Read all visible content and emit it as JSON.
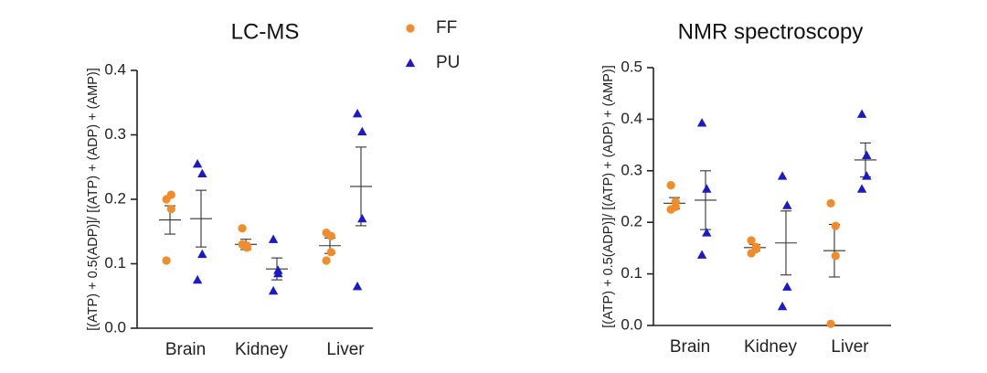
{
  "colors": {
    "FF": "#F28C28",
    "PU": "#1A1AC8"
  },
  "legend": [
    {
      "label": "FF",
      "marker": "circle"
    },
    {
      "label": "PU",
      "marker": "triangle"
    }
  ],
  "chart_data": [
    {
      "type": "scatter",
      "title": "LC-MS",
      "ylabel": "[(ATP) + 0.5(ADP)]/ [(ATP) + (ADP) + (AMP)]",
      "xlabel": "",
      "ylim": [
        0,
        0.4
      ],
      "yticks": [
        0.0,
        0.1,
        0.2,
        0.3,
        0.4
      ],
      "ytick_labels": [
        "0.0",
        "0.1",
        "0.2",
        "0.3",
        "0.4"
      ],
      "categories": [
        "Brain",
        "Kidney",
        "Liver"
      ],
      "series": [
        {
          "name": "FF",
          "marker": "circle",
          "points": [
            [
              0.2,
              0.207,
              0.185,
              0.105
            ],
            [
              0.155,
              0.128,
              0.125,
              0.13
            ],
            [
              0.148,
              0.143,
              0.118,
              0.105
            ]
          ],
          "mean": [
            0.168,
            0.13,
            0.128
          ],
          "sem": [
            0.022,
            0.008,
            0.012
          ]
        },
        {
          "name": "PU",
          "marker": "triangle",
          "points": [
            [
              0.255,
              0.24,
              0.115,
              0.075
            ],
            [
              0.138,
              0.09,
              0.085,
              0.058
            ],
            [
              0.333,
              0.305,
              0.17,
              0.065
            ]
          ],
          "mean": [
            0.17,
            0.092,
            0.22
          ],
          "sem": [
            0.044,
            0.017,
            0.061
          ]
        }
      ]
    },
    {
      "type": "scatter",
      "title": "NMR spectroscopy",
      "ylabel": "[(ATP) + 0.5(ADP)]/ [(ATP) + (ADP) + (AMP)]",
      "xlabel": "",
      "ylim": [
        0,
        0.5
      ],
      "yticks": [
        0.0,
        0.1,
        0.2,
        0.3,
        0.4,
        0.5
      ],
      "ytick_labels": [
        "0.0",
        "0.1",
        "0.2",
        "0.3",
        "0.4",
        "0.5"
      ],
      "categories": [
        "Brain",
        "Kidney",
        "Liver"
      ],
      "series": [
        {
          "name": "FF",
          "marker": "circle",
          "points": [
            [
              0.272,
              0.24,
              0.23,
              0.225
            ],
            [
              0.165,
              0.152,
              0.148,
              0.14
            ],
            [
              0.237,
              0.193,
              0.135,
              0.003
            ]
          ],
          "mean": [
            0.237,
            0.151,
            0.145
          ],
          "sem": [
            0.011,
            0.006,
            0.051
          ]
        },
        {
          "name": "PU",
          "marker": "triangle",
          "points": [
            [
              0.393,
              0.265,
              0.18,
              0.137
            ],
            [
              0.29,
              0.233,
              0.075,
              0.037
            ],
            [
              0.41,
              0.33,
              0.29,
              0.265
            ]
          ],
          "mean": [
            0.243,
            0.16,
            0.321
          ],
          "sem": [
            0.057,
            0.062,
            0.033
          ]
        }
      ]
    }
  ]
}
